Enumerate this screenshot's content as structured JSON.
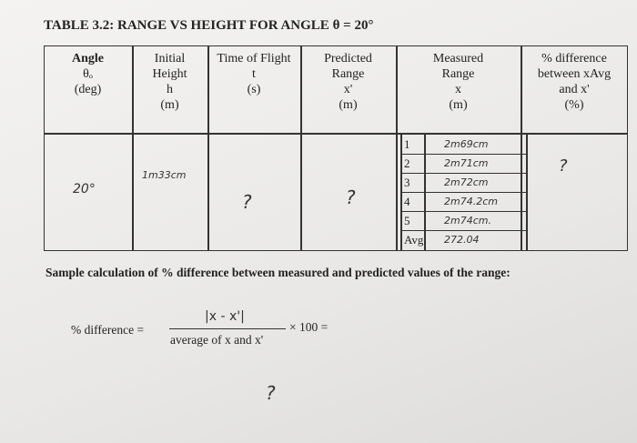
{
  "title": "TABLE 3.2: RANGE VS HEIGHT FOR ANGLE θ = 20°",
  "table": {
    "headers": [
      [
        "Angle",
        "θₒ",
        "(deg)"
      ],
      [
        "Initial",
        "Height",
        "h",
        "(m)"
      ],
      [
        "Time of Flight",
        "t",
        "(s)"
      ],
      [
        "Predicted",
        "Range",
        "x'",
        "(m)"
      ],
      [
        "Measured",
        "Range",
        "x",
        "(m)"
      ],
      [
        "% difference",
        "between xAvg",
        "and x'",
        "(%)"
      ]
    ],
    "angle": "20°",
    "height": "1m33cm",
    "time": "?",
    "predicted": "?",
    "measured": [
      [
        "1",
        "2m69cm"
      ],
      [
        "2",
        "2m71cm"
      ],
      [
        "3",
        "2m72cm"
      ],
      [
        "4",
        "2m74.2cm"
      ],
      [
        "5",
        "2m74cm."
      ],
      [
        "Avg.",
        "272.04"
      ]
    ],
    "difference": "?"
  },
  "sample": {
    "heading": "Sample calculation of % difference between measured and predicted values of the range:",
    "label": "% difference =",
    "numerator": "|x - x'|",
    "denominator": "average of x and x'",
    "factor": "× 100 =",
    "answer": "?"
  }
}
